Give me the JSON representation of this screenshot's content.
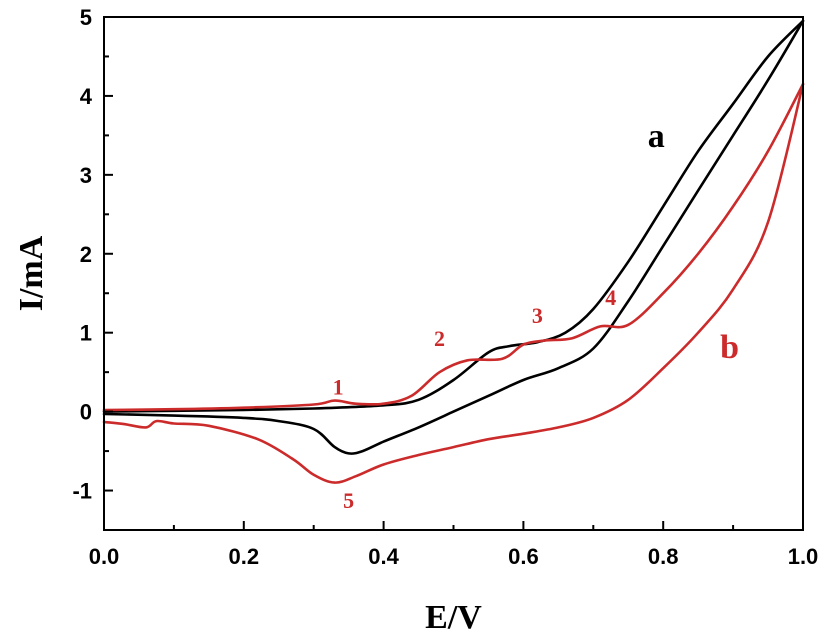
{
  "chart_data": {
    "type": "line",
    "xlabel": "E/V",
    "ylabel": "I/mA",
    "xlim": [
      0.0,
      1.0
    ],
    "ylim": [
      -1.5,
      5.0
    ],
    "x_ticks": [
      "0.0",
      "0.2",
      "0.4",
      "0.6",
      "0.8",
      "1.0"
    ],
    "y_ticks": [
      "-1",
      "0",
      "1",
      "2",
      "3",
      "4",
      "5"
    ],
    "x_tick_values": [
      0.0,
      0.2,
      0.4,
      0.6,
      0.8,
      1.0
    ],
    "y_tick_values": [
      -1,
      0,
      1,
      2,
      3,
      4,
      5
    ],
    "grid": false,
    "series": [
      {
        "name": "a",
        "color": "#000000",
        "label_anchor": [
          0.79,
          3.35
        ],
        "forward": [
          [
            0.0,
            0.0
          ],
          [
            0.1,
            0.01
          ],
          [
            0.2,
            0.02
          ],
          [
            0.3,
            0.04
          ],
          [
            0.4,
            0.08
          ],
          [
            0.45,
            0.15
          ],
          [
            0.5,
            0.4
          ],
          [
            0.55,
            0.75
          ],
          [
            0.58,
            0.83
          ],
          [
            0.62,
            0.88
          ],
          [
            0.66,
            1.0
          ],
          [
            0.7,
            1.3
          ],
          [
            0.75,
            1.9
          ],
          [
            0.8,
            2.6
          ],
          [
            0.85,
            3.3
          ],
          [
            0.9,
            3.9
          ],
          [
            0.95,
            4.5
          ],
          [
            1.0,
            4.95
          ]
        ],
        "reverse": [
          [
            1.0,
            4.95
          ],
          [
            0.95,
            4.2
          ],
          [
            0.9,
            3.5
          ],
          [
            0.85,
            2.8
          ],
          [
            0.8,
            2.1
          ],
          [
            0.75,
            1.4
          ],
          [
            0.7,
            0.8
          ],
          [
            0.65,
            0.55
          ],
          [
            0.6,
            0.4
          ],
          [
            0.55,
            0.2
          ],
          [
            0.5,
            0.0
          ],
          [
            0.45,
            -0.2
          ],
          [
            0.4,
            -0.38
          ],
          [
            0.37,
            -0.5
          ],
          [
            0.35,
            -0.53
          ],
          [
            0.33,
            -0.45
          ],
          [
            0.3,
            -0.22
          ],
          [
            0.25,
            -0.12
          ],
          [
            0.2,
            -0.08
          ],
          [
            0.1,
            -0.05
          ],
          [
            0.0,
            -0.03
          ]
        ]
      },
      {
        "name": "b",
        "color": "#cc2b2b",
        "label_anchor": [
          0.895,
          0.68
        ],
        "forward": [
          [
            0.0,
            0.02
          ],
          [
            0.1,
            0.03
          ],
          [
            0.2,
            0.05
          ],
          [
            0.3,
            0.09
          ],
          [
            0.33,
            0.14
          ],
          [
            0.36,
            0.1
          ],
          [
            0.4,
            0.1
          ],
          [
            0.44,
            0.2
          ],
          [
            0.48,
            0.5
          ],
          [
            0.52,
            0.65
          ],
          [
            0.57,
            0.67
          ],
          [
            0.6,
            0.85
          ],
          [
            0.63,
            0.9
          ],
          [
            0.67,
            0.93
          ],
          [
            0.71,
            1.08
          ],
          [
            0.75,
            1.1
          ],
          [
            0.8,
            1.5
          ],
          [
            0.85,
            2.0
          ],
          [
            0.9,
            2.6
          ],
          [
            0.95,
            3.3
          ],
          [
            1.0,
            4.15
          ]
        ],
        "reverse": [
          [
            1.0,
            4.15
          ],
          [
            0.95,
            2.4
          ],
          [
            0.9,
            1.55
          ],
          [
            0.85,
            1.0
          ],
          [
            0.8,
            0.55
          ],
          [
            0.75,
            0.15
          ],
          [
            0.7,
            -0.08
          ],
          [
            0.65,
            -0.2
          ],
          [
            0.6,
            -0.28
          ],
          [
            0.55,
            -0.35
          ],
          [
            0.5,
            -0.45
          ],
          [
            0.45,
            -0.55
          ],
          [
            0.4,
            -0.67
          ],
          [
            0.36,
            -0.82
          ],
          [
            0.33,
            -0.9
          ],
          [
            0.3,
            -0.8
          ],
          [
            0.27,
            -0.6
          ],
          [
            0.22,
            -0.35
          ],
          [
            0.15,
            -0.18
          ],
          [
            0.1,
            -0.15
          ],
          [
            0.075,
            -0.12
          ],
          [
            0.06,
            -0.2
          ],
          [
            0.03,
            -0.16
          ],
          [
            0.0,
            -0.13
          ]
        ]
      }
    ],
    "annotations": [
      {
        "text": "1",
        "x": 0.335,
        "y": 0.22
      },
      {
        "text": "2",
        "x": 0.48,
        "y": 0.83
      },
      {
        "text": "3",
        "x": 0.62,
        "y": 1.12
      },
      {
        "text": "4",
        "x": 0.725,
        "y": 1.35
      },
      {
        "text": "5",
        "x": 0.35,
        "y": -1.22
      }
    ]
  }
}
